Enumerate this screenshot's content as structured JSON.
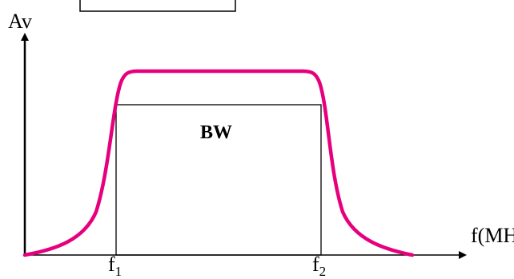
{
  "labels": {
    "y_axis": "Av",
    "x_axis": "f(MHz)",
    "bandwidth": "BW",
    "f1_base": "f",
    "f1_sub": "1",
    "f2_base": "f",
    "f2_sub": "2"
  },
  "colors": {
    "response_curve": "#e6007e",
    "axes": "#000000"
  }
}
